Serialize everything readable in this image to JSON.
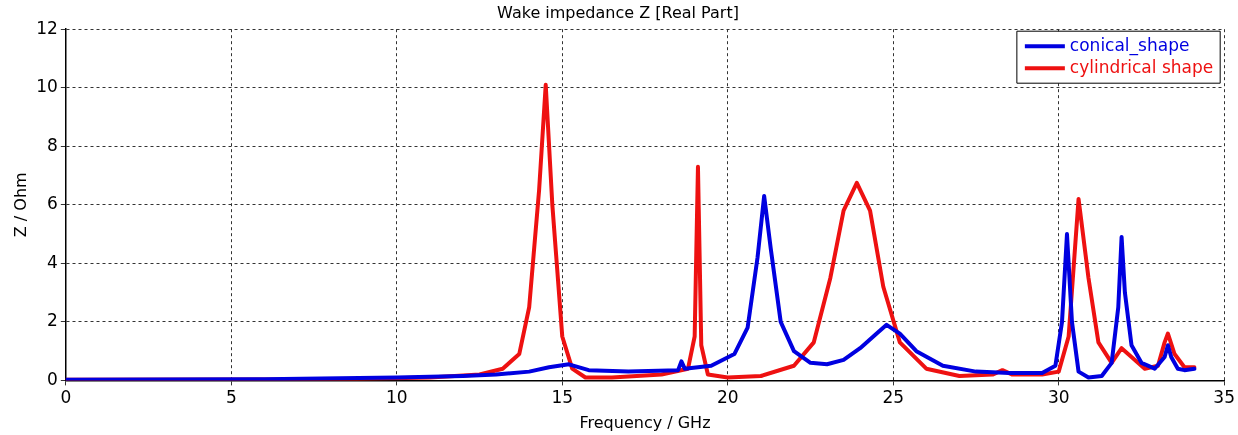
{
  "chart_data": {
    "type": "line",
    "title": "Wake impedance Z [Real Part]",
    "xlabel": "Frequency / GHz",
    "ylabel": "Z / Ohm",
    "xlim": [
      0,
      35
    ],
    "xticks": [
      0,
      5,
      10,
      15,
      20,
      25,
      30,
      35
    ],
    "ylim": [
      0,
      12
    ],
    "yticks": [
      0,
      2,
      4,
      6,
      8,
      10,
      12
    ],
    "grid": true,
    "legend": "top right",
    "marker": "none",
    "line_style": "solid",
    "series": [
      {
        "name": "conical_shape",
        "color": "#0000e0",
        "x": [
          0,
          6,
          10,
          12,
          13,
          14,
          14.6,
          15.2,
          15.8,
          17,
          18.5,
          18.6,
          18.7,
          19.5,
          20.2,
          20.6,
          20.9,
          21.1,
          21.3,
          21.6,
          22,
          22.5,
          23,
          23.5,
          24,
          24.5,
          24.8,
          25.2,
          25.7,
          26.5,
          27.5,
          28.5,
          29.5,
          29.9,
          30.1,
          30.25,
          30.4,
          30.6,
          30.9,
          31.3,
          31.6,
          31.8,
          31.9,
          32,
          32.2,
          32.5,
          32.9,
          33.2,
          33.3,
          33.4,
          33.6,
          33.8,
          34.1
        ],
        "values": [
          0.02,
          0.04,
          0.1,
          0.15,
          0.2,
          0.3,
          0.45,
          0.55,
          0.35,
          0.3,
          0.35,
          0.65,
          0.4,
          0.5,
          0.9,
          1.8,
          4.2,
          6.3,
          4.5,
          2,
          1,
          0.6,
          0.55,
          0.7,
          1.1,
          1.6,
          1.9,
          1.6,
          1,
          0.5,
          0.3,
          0.25,
          0.25,
          0.5,
          2,
          5,
          2,
          0.3,
          0.1,
          0.15,
          0.6,
          2.5,
          4.9,
          3,
          1.2,
          0.6,
          0.4,
          0.8,
          1.2,
          0.8,
          0.4,
          0.35,
          0.4
        ]
      },
      {
        "name": "cylindrical shape",
        "color": "#ee1111",
        "x": [
          0,
          8,
          11,
          12.5,
          13.2,
          13.7,
          14,
          14.3,
          14.5,
          14.7,
          15,
          15.3,
          15.7,
          16.5,
          18,
          18.8,
          19,
          19.1,
          19.2,
          19.4,
          20,
          21,
          22,
          22.6,
          23.1,
          23.5,
          23.9,
          24.3,
          24.7,
          25.2,
          26,
          27,
          28,
          28.3,
          28.6,
          29.5,
          30,
          30.3,
          30.6,
          30.9,
          31.2,
          31.6,
          31.9,
          32.2,
          32.6,
          33,
          33.2,
          33.3,
          33.5,
          33.8,
          34.1
        ],
        "values": [
          0.02,
          0.03,
          0.1,
          0.2,
          0.4,
          0.9,
          2.5,
          6.5,
          10.1,
          6,
          1.5,
          0.4,
          0.1,
          0.1,
          0.2,
          0.4,
          1.5,
          7.3,
          1.2,
          0.2,
          0.1,
          0.15,
          0.5,
          1.3,
          3.5,
          5.8,
          6.75,
          5.8,
          3.2,
          1.3,
          0.4,
          0.15,
          0.2,
          0.35,
          0.2,
          0.2,
          0.3,
          1.5,
          6.2,
          3.5,
          1.3,
          0.6,
          1.1,
          0.8,
          0.4,
          0.5,
          1.3,
          1.6,
          0.9,
          0.45,
          0.45
        ]
      }
    ]
  }
}
